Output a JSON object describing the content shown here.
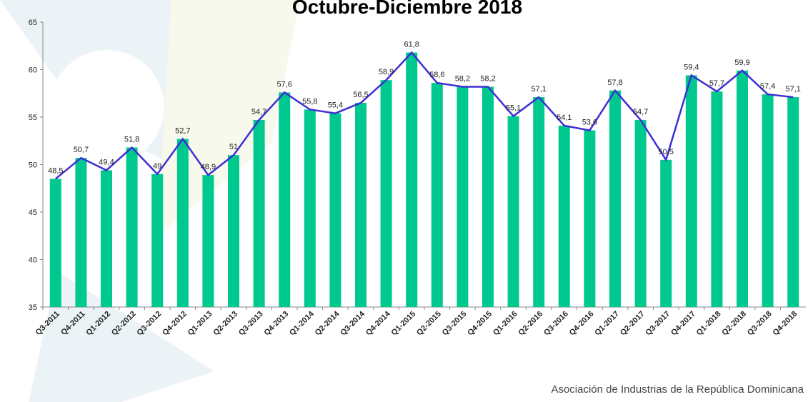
{
  "chart_data": {
    "type": "bar_line",
    "title": "Octubre-Diciembre 2018",
    "categories": [
      "Q3-2011",
      "Q4-2011",
      "Q1-2012",
      "Q2-2012",
      "Q3-2012",
      "Q4-2012",
      "Q1-2013",
      "Q2-2013",
      "Q3-2013",
      "Q4-2013",
      "Q1-2014",
      "Q2-2014",
      "Q3-2014",
      "Q4-2014",
      "Q1-2015",
      "Q2-2015",
      "Q3-2015",
      "Q4-2015",
      "Q1-2016",
      "Q2-2016",
      "Q3-2016",
      "Q4-2016",
      "Q1-2017",
      "Q2-2017",
      "Q3-2017",
      "Q4-2017",
      "Q1-2018",
      "Q2-2018",
      "Q3-2018",
      "Q4-2018"
    ],
    "values": [
      48.5,
      50.7,
      49.4,
      51.8,
      49,
      52.7,
      48.9,
      51,
      54.7,
      57.6,
      55.8,
      55.4,
      56.5,
      58.9,
      61.8,
      58.6,
      58.2,
      58.2,
      55.1,
      57.1,
      54.1,
      53.6,
      57.8,
      54.7,
      50.5,
      59.4,
      57.7,
      59.9,
      57.4,
      57.1
    ],
    "value_labels": [
      "48,5",
      "50,7",
      "49,4",
      "51,8",
      "49",
      "52,7",
      "48,9",
      "51",
      "54,7",
      "57,6",
      "55,8",
      "55,4",
      "56,5",
      "58,9",
      "61,8",
      "58,6",
      "58,2",
      "58,2",
      "55,1",
      "57,1",
      "54,1",
      "53,6",
      "57,8",
      "54,7",
      "50,5",
      "59,4",
      "57,7",
      "59,9",
      "57,4",
      "57,1"
    ],
    "color": "#00c98f",
    "line_color": "#3d2fd4",
    "ylim": [
      35,
      65
    ],
    "yticks": [
      35,
      40,
      45,
      50,
      55,
      60,
      65
    ],
    "source": "Asociación de Industrias de la República Dominicana"
  }
}
